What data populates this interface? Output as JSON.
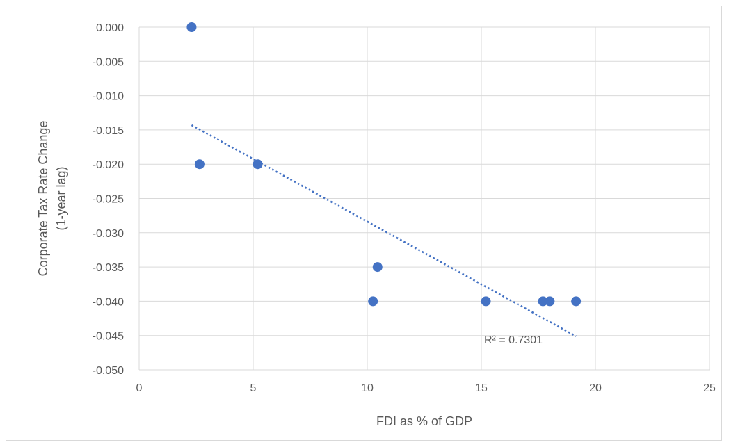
{
  "chart_data": {
    "type": "scatter",
    "title": "",
    "xlabel": "FDI as % of GDP",
    "ylabel_lines": [
      "Corporate Tax Rate Change",
      "(1-year lag)"
    ],
    "xlim": [
      0,
      25
    ],
    "ylim": [
      -0.05,
      0.0
    ],
    "x_ticks": [
      0,
      5,
      10,
      15,
      20,
      25
    ],
    "x_tick_labels": [
      "0",
      "5",
      "10",
      "15",
      "20",
      "25"
    ],
    "y_ticks": [
      0.0,
      -0.005,
      -0.01,
      -0.015,
      -0.02,
      -0.025,
      -0.03,
      -0.035,
      -0.04,
      -0.045,
      -0.05
    ],
    "y_tick_labels": [
      "0.000",
      "-0.005",
      "-0.010",
      "-0.015",
      "-0.020",
      "-0.025",
      "-0.030",
      "-0.035",
      "-0.040",
      "-0.045",
      "-0.050"
    ],
    "grid": true,
    "points": [
      {
        "x": 2.3,
        "y": 0.0
      },
      {
        "x": 2.65,
        "y": -0.02
      },
      {
        "x": 5.2,
        "y": -0.02
      },
      {
        "x": 10.25,
        "y": -0.04
      },
      {
        "x": 10.45,
        "y": -0.035
      },
      {
        "x": 15.2,
        "y": -0.04
      },
      {
        "x": 17.7,
        "y": -0.04
      },
      {
        "x": 18.0,
        "y": -0.04
      },
      {
        "x": 19.15,
        "y": -0.04
      }
    ],
    "trendline": {
      "style": "dotted",
      "x": [
        2.3,
        19.15
      ],
      "y": [
        -0.0143,
        -0.0451
      ],
      "r_squared_label": "R² = 0.7301"
    },
    "colors": {
      "points": "#4472c4",
      "trendline": "#4472c4",
      "grid": "#d9d9d9",
      "text": "#595959"
    }
  }
}
